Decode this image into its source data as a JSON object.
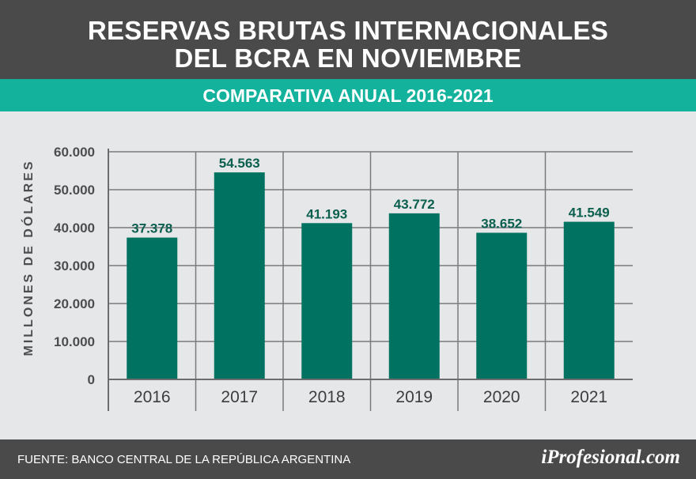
{
  "header": {
    "title_line1": "RESERVAS BRUTAS INTERNACIONALES",
    "title_line2": "DEL BCRA EN NOVIEMBRE",
    "subtitle": "COMPARATIVA ANUAL 2016-2021"
  },
  "footer": {
    "source": "FUENTE: BANCO CENTRAL DE LA REPÚBLICA ARGENTINA",
    "logo": "iProfesional.com"
  },
  "colors": {
    "header_bg": "#4a4a4b",
    "accent": "#12b29d",
    "bar": "#007261",
    "data_label": "#0b5f4f",
    "plot_bg": "#e6e7e8"
  },
  "chart_data": {
    "type": "bar",
    "title": "",
    "xlabel": "",
    "ylabel": "MILLONES DE DÓLARES",
    "categories": [
      "2016",
      "2017",
      "2018",
      "2019",
      "2020",
      "2021"
    ],
    "values": [
      37378,
      54563,
      41193,
      43772,
      38652,
      41549
    ],
    "data_labels": [
      "37.378",
      "54.563",
      "41.193",
      "43.772",
      "38.652",
      "41.549"
    ],
    "ylim": [
      0,
      60000
    ],
    "yticks": [
      0,
      10000,
      20000,
      30000,
      40000,
      50000,
      60000
    ],
    "ytick_labels": [
      "0",
      "10.000",
      "20.000",
      "30.000",
      "40.000",
      "50.000",
      "60.000"
    ],
    "grid": true
  }
}
